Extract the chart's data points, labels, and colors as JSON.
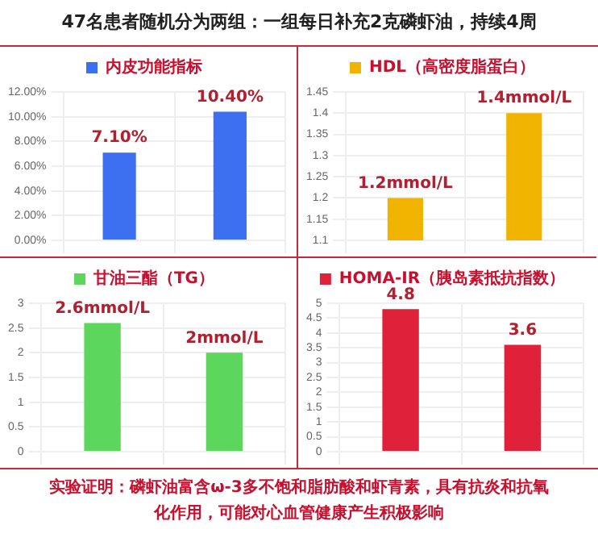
{
  "chart_data": [
    {
      "type": "bar",
      "title": "47名患者随机分为两组：一组每日补充2克磷虾油，持续4周",
      "categories": [
        null,
        null
      ],
      "series": [
        {
          "name": "内皮功能指标",
          "color": "#3d70f0",
          "values": [
            7.1,
            10.4
          ],
          "value_labels": [
            "7.10%",
            "10.40%"
          ]
        }
      ],
      "ylim": [
        0,
        12
      ],
      "yticks": [
        {
          "value": 0,
          "label": "0.00%"
        },
        {
          "value": 2,
          "label": "2.00%"
        },
        {
          "value": 4,
          "label": "4.00%"
        },
        {
          "value": 6,
          "label": "6.00%"
        },
        {
          "value": 8,
          "label": "8.00%"
        },
        {
          "value": 10,
          "label": "10.00%"
        },
        {
          "value": 12,
          "label": "12.00%"
        }
      ],
      "grid": true,
      "legend": "top",
      "tick_labels": "y"
    },
    {
      "type": "bar",
      "categories": [
        null,
        null
      ],
      "series": [
        {
          "name": "HDL（高密度脂蛋白）",
          "color": "#f0b400",
          "values": [
            1.2,
            1.4
          ],
          "value_labels": [
            "1.2mmol/L",
            "1.4mmol/L"
          ]
        }
      ],
      "ylim": [
        1.1,
        1.45
      ],
      "yticks": [
        1.1,
        1.15,
        1.2,
        1.25,
        1.3,
        1.35,
        1.4,
        1.45
      ],
      "grid": true,
      "legend": "top",
      "tick_labels": "y"
    },
    {
      "type": "bar",
      "categories": [
        null,
        null
      ],
      "series": [
        {
          "name": "甘油三酯（TG）",
          "color": "#5cd65c",
          "values": [
            2.6,
            2.0
          ],
          "value_labels": [
            "2.6mmol/L",
            "2mmol/L"
          ]
        }
      ],
      "ylim": [
        0,
        3
      ],
      "yticks": [
        0,
        0.5,
        1,
        1.5,
        2,
        2.5,
        3
      ],
      "grid": true,
      "legend": "top",
      "tick_labels": "y"
    },
    {
      "type": "bar",
      "categories": [
        null,
        null
      ],
      "series": [
        {
          "name": "HOMA-IR（胰岛素抵抗指数）",
          "color": "#e0213a",
          "values": [
            4.8,
            3.6
          ],
          "value_labels": [
            "4.8",
            "3.6"
          ]
        }
      ],
      "ylim": [
        0,
        5
      ],
      "yticks": [
        0,
        0.5,
        1,
        1.5,
        2,
        2.5,
        3,
        3.5,
        4,
        4.5,
        5
      ],
      "grid": true,
      "legend": "top",
      "tick_labels": "y",
      "annotations": [
        "实验证明：磷虾油富含ω-3多不饱和脂肪酸和虾青素，具有抗炎和抗氧化作用，可能对心血管健康产生积极影响"
      ]
    }
  ]
}
